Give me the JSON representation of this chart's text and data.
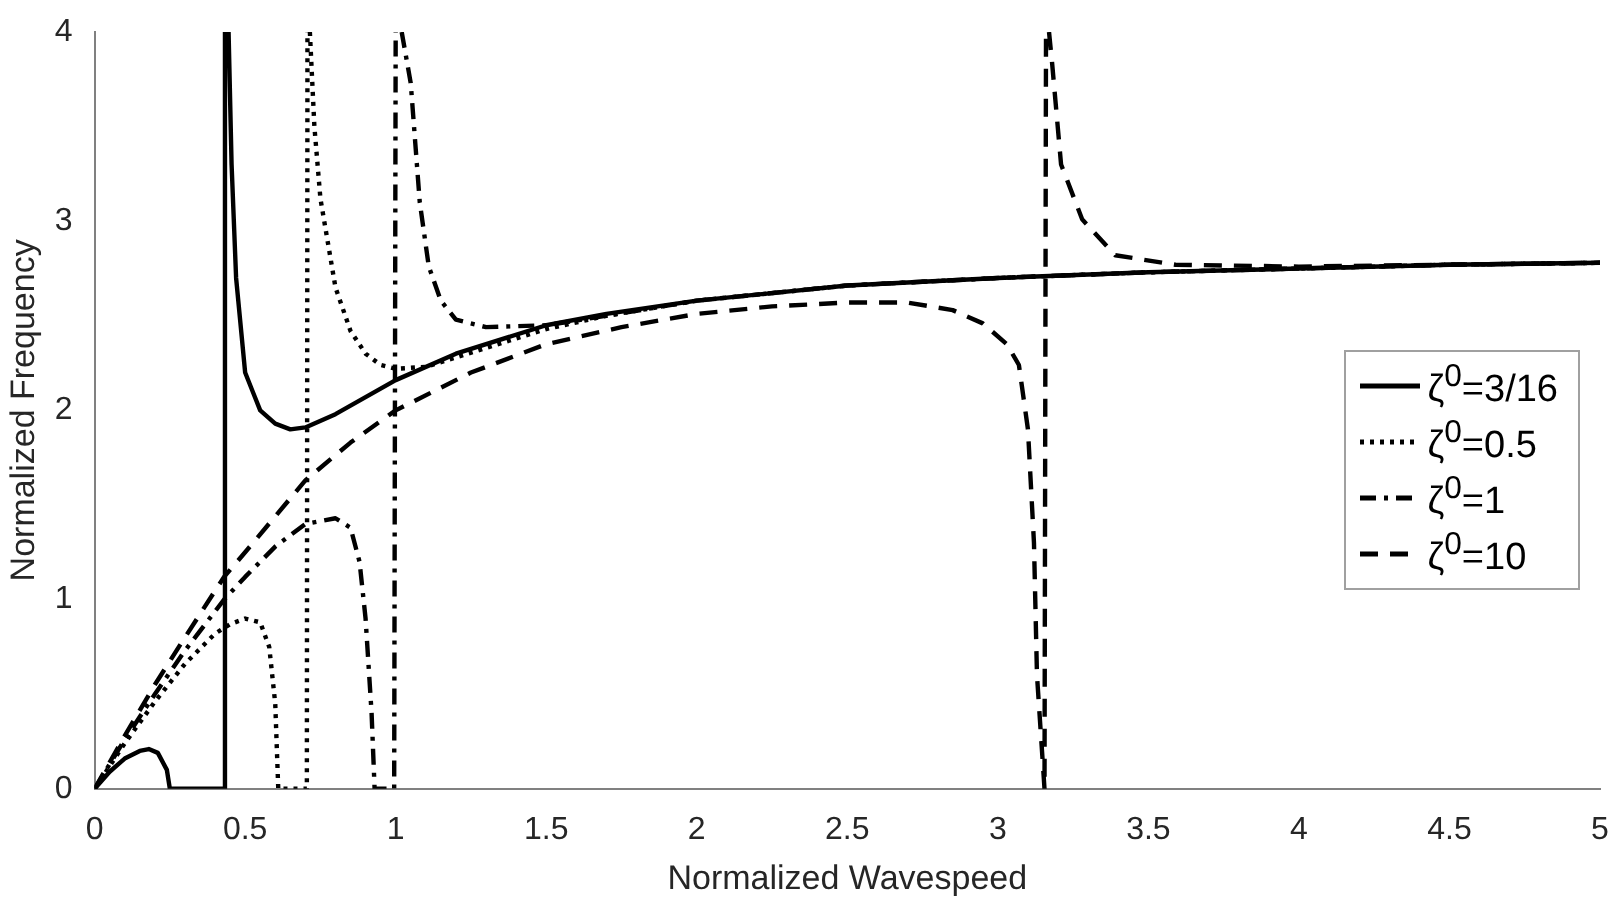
{
  "chart_data": {
    "type": "line",
    "xlabel": "Normalized Wavespeed",
    "ylabel": "Normalized Frequency",
    "xlim": [
      0,
      5
    ],
    "xticks": [
      0,
      0.5,
      1,
      1.5,
      2,
      2.5,
      3,
      3.5,
      4,
      4.5,
      5
    ],
    "ylim": [
      0,
      4
    ],
    "yticks": [
      0,
      1,
      2,
      3,
      4
    ],
    "grid": false,
    "legend": "right",
    "series": [
      {
        "name": "ζ$^{0}$=3/16",
        "color": "#000000",
        "line_style": "solid",
        "x": [
          0,
          0.05,
          0.1,
          0.15,
          0.18,
          0.21,
          0.24,
          0.25,
          0.3,
          0.43,
          0.433,
          0.437,
          0.445,
          0.455,
          0.47,
          0.5,
          0.55,
          0.6,
          0.65,
          0.7,
          0.8,
          0.9,
          1.0,
          1.2,
          1.5,
          1.7,
          2.0,
          2.5,
          3.0,
          3.5,
          4.0,
          4.5,
          5.0
        ],
        "values": [
          0,
          0.09,
          0.16,
          0.2,
          0.21,
          0.19,
          0.1,
          0,
          0,
          0,
          4,
          null,
          4,
          3.3,
          2.7,
          2.2,
          2.0,
          1.93,
          1.9,
          1.91,
          1.98,
          2.07,
          2.16,
          2.3,
          2.45,
          2.51,
          2.58,
          2.66,
          2.7,
          2.73,
          2.75,
          2.77,
          2.78
        ]
      },
      {
        "name": "ζ$^{0}$=0.5",
        "color": "#000000",
        "line_style": "dotted",
        "x": [
          0,
          0.1,
          0.2,
          0.3,
          0.4,
          0.45,
          0.5,
          0.55,
          0.58,
          0.6,
          0.61,
          0.65,
          0.705,
          0.707,
          0.71,
          0.715,
          0.73,
          0.75,
          0.8,
          0.85,
          0.9,
          0.95,
          1.0,
          1.1,
          1.3,
          1.5,
          1.7,
          2,
          2.5,
          3,
          3.5,
          4,
          4.5,
          5
        ],
        "values": [
          0,
          0.24,
          0.46,
          0.66,
          0.82,
          0.87,
          0.9,
          0.88,
          0.75,
          0.45,
          0,
          0,
          0,
          4,
          null,
          4,
          3.5,
          3.12,
          2.65,
          2.42,
          2.3,
          2.24,
          2.22,
          2.23,
          2.33,
          2.43,
          2.5,
          2.58,
          2.66,
          2.7,
          2.73,
          2.75,
          2.77,
          2.78
        ]
      },
      {
        "name": "ζ$^{0}$=1",
        "color": "#000000",
        "line_style": "dashdot",
        "x": [
          0,
          0.1,
          0.2,
          0.3,
          0.43,
          0.5,
          0.6,
          0.7,
          0.8,
          0.85,
          0.88,
          0.9,
          0.92,
          0.93,
          0.995,
          1.0,
          1.005,
          1.02,
          1.05,
          1.08,
          1.11,
          1.15,
          1.2,
          1.3,
          1.5,
          1.7,
          2.0,
          2.5,
          3,
          3.5,
          4,
          4.5,
          5
        ],
        "values": [
          0,
          0.26,
          0.5,
          0.73,
          1.0,
          1.12,
          1.28,
          1.4,
          1.43,
          1.38,
          1.2,
          0.9,
          0.4,
          0,
          0,
          4,
          null,
          4,
          3.73,
          3.1,
          2.76,
          2.58,
          2.48,
          2.44,
          2.45,
          2.5,
          2.58,
          2.66,
          2.7,
          2.73,
          2.75,
          2.77,
          2.78
        ]
      },
      {
        "name": "ζ$^{0}$=10",
        "color": "#000000",
        "line_style": "dashed",
        "x": [
          0,
          0.1,
          0.2,
          0.3,
          0.43,
          0.5,
          0.7,
          0.85,
          1.0,
          1.25,
          1.5,
          1.75,
          2.0,
          2.25,
          2.5,
          2.7,
          2.85,
          2.95,
          3.03,
          3.07,
          3.1,
          3.12,
          3.13,
          3.155,
          3.16,
          3.165,
          3.17,
          3.18,
          3.21,
          3.28,
          3.39,
          3.59,
          4,
          4.5,
          5
        ],
        "values": [
          0,
          0.28,
          0.55,
          0.8,
          1.12,
          1.25,
          1.63,
          1.83,
          2.0,
          2.2,
          2.35,
          2.44,
          2.51,
          2.55,
          2.57,
          2.57,
          2.53,
          2.46,
          2.35,
          2.24,
          1.9,
          1.3,
          0.6,
          0,
          4,
          null,
          4,
          3.84,
          3.3,
          3.01,
          2.82,
          2.77,
          2.76,
          2.77,
          2.78
        ]
      }
    ]
  }
}
